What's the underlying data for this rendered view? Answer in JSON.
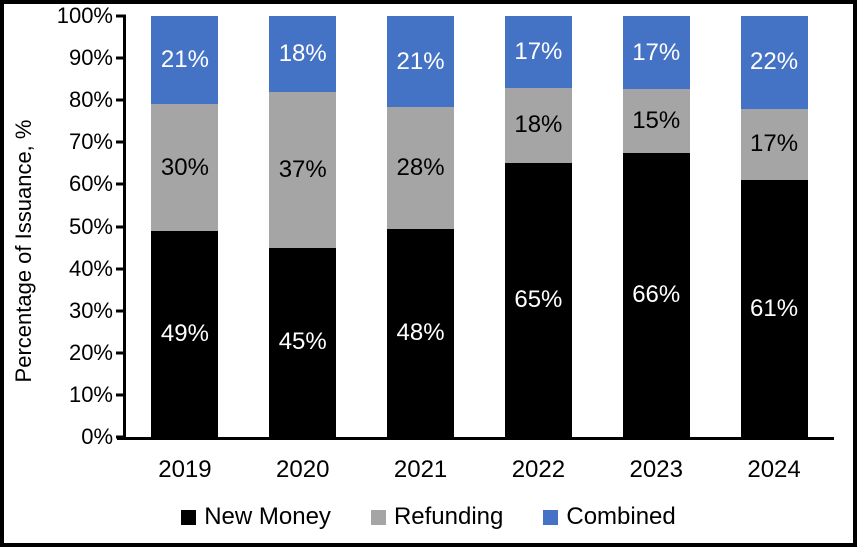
{
  "chart_data": {
    "type": "bar",
    "stacked": true,
    "title": "",
    "xlabel": "",
    "ylabel": "Percentage of Issuance, %",
    "ylim": [
      0,
      100
    ],
    "y_ticks": [
      "0%",
      "10%",
      "20%",
      "30%",
      "40%",
      "50%",
      "60%",
      "70%",
      "80%",
      "90%",
      "100%"
    ],
    "grid": false,
    "legend_position": "bottom",
    "categories": [
      "2019",
      "2020",
      "2021",
      "2022",
      "2023",
      "2024"
    ],
    "series": [
      {
        "name": "New Money",
        "color": "#000000",
        "label_color": "#ffffff",
        "values": [
          49,
          45,
          48,
          65,
          66,
          61
        ],
        "labels": [
          "49%",
          "45%",
          "48%",
          "65%",
          "66%",
          "61%"
        ]
      },
      {
        "name": "Refunding",
        "color": "#A5A5A5",
        "label_color": "#000000",
        "values": [
          30,
          37,
          28,
          18,
          15,
          17
        ],
        "labels": [
          "30%",
          "37%",
          "28%",
          "18%",
          "15%",
          "17%"
        ]
      },
      {
        "name": "Combined",
        "color": "#4472C4",
        "label_color": "#ffffff",
        "values": [
          21,
          18,
          21,
          17,
          17,
          22
        ],
        "labels": [
          "21%",
          "18%",
          "21%",
          "17%",
          "17%",
          "22%"
        ]
      }
    ],
    "colors": {
      "axis": "#000000",
      "background": "#ffffff",
      "border": "#000000"
    }
  }
}
